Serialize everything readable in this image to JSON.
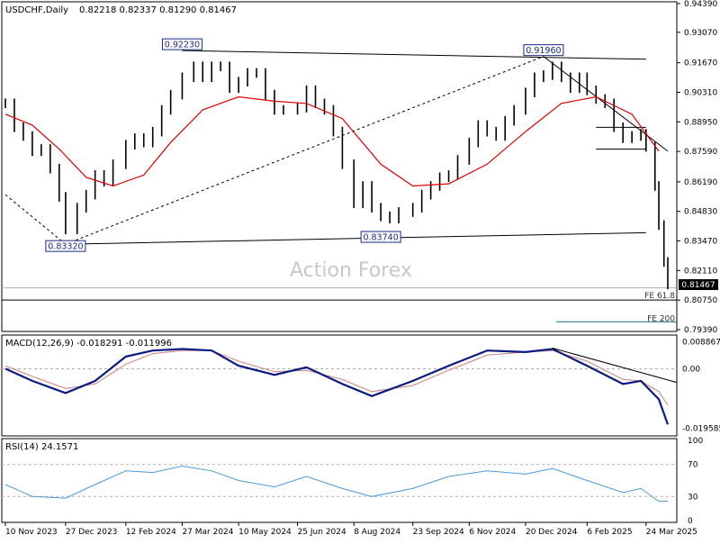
{
  "colors": {
    "price": "#000000",
    "ma": "#e00000",
    "macd": "#0b1a80",
    "signal": "#d08080",
    "rsi": "#4a9ad8",
    "label_border": "#1a2a8a",
    "watermark": "#c8c8c8",
    "grid": "#b0b0b0"
  },
  "header": {
    "symbol": "USDCHF,Daily",
    "ohlc": "0.82218 0.82337 0.81290 0.81467"
  },
  "watermark": "Action Forex",
  "current_price_label": "0.81467",
  "chart_data": [
    {
      "type": "ohlc",
      "title": "USDCHF,Daily",
      "ylim": [
        0.7939,
        0.9439
      ],
      "y_ticks": [
        "0.94390",
        "0.93070",
        "0.91670",
        "0.90310",
        "0.88950",
        "0.87590",
        "0.86190",
        "0.84830",
        "0.83470",
        "0.82110",
        "0.80750",
        "0.79390"
      ],
      "y_tick_values": [
        0.9439,
        0.9307,
        0.9167,
        0.9031,
        0.8895,
        0.8759,
        0.8619,
        0.8483,
        0.8347,
        0.8211,
        0.8075,
        0.7939
      ],
      "x_ticks": [
        "10 Nov 2023",
        "27 Dec 2023",
        "12 Feb 2024",
        "27 Mar 2024",
        "10 May 2024",
        "25 Jun 2024",
        "8 Aug 2024",
        "23 Sep 2024",
        "6 Nov 2024",
        "20 Dec 2024",
        "6 Feb 2025",
        "24 Mar 2025"
      ],
      "close_series": [
        {
          "date": "10 Nov 2023",
          "value": 0.898
        },
        {
          "date": "17 Nov 2023",
          "value": 0.887
        },
        {
          "date": "24 Nov 2023",
          "value": 0.883
        },
        {
          "date": "1 Dec 2023",
          "value": 0.876
        },
        {
          "date": "8 Dec 2023",
          "value": 0.877
        },
        {
          "date": "15 Dec 2023",
          "value": 0.868
        },
        {
          "date": "22 Dec 2023",
          "value": 0.855
        },
        {
          "date": "27 Dec 2023",
          "value": 0.84
        },
        {
          "date": "5 Jan 2024",
          "value": 0.85
        },
        {
          "date": "12 Jan 2024",
          "value": 0.856
        },
        {
          "date": "19 Jan 2024",
          "value": 0.865
        },
        {
          "date": "26 Jan 2024",
          "value": 0.862
        },
        {
          "date": "2 Feb 2024",
          "value": 0.87
        },
        {
          "date": "12 Feb 2024",
          "value": 0.879
        },
        {
          "date": "19 Feb 2024",
          "value": 0.882
        },
        {
          "date": "26 Feb 2024",
          "value": 0.88
        },
        {
          "date": "4 Mar 2024",
          "value": 0.885
        },
        {
          "date": "11 Mar 2024",
          "value": 0.895
        },
        {
          "date": "18 Mar 2024",
          "value": 0.902
        },
        {
          "date": "27 Mar 2024",
          "value": 0.91
        },
        {
          "date": "5 Apr 2024",
          "value": 0.915
        },
        {
          "date": "12 Apr 2024",
          "value": 0.91
        },
        {
          "date": "19 Apr 2024",
          "value": 0.915
        },
        {
          "date": "26 Apr 2024",
          "value": 0.915
        },
        {
          "date": "3 May 2024",
          "value": 0.905
        },
        {
          "date": "10 May 2024",
          "value": 0.908
        },
        {
          "date": "17 May 2024",
          "value": 0.912
        },
        {
          "date": "24 May 2024",
          "value": 0.912
        },
        {
          "date": "31 May 2024",
          "value": 0.902
        },
        {
          "date": "7 Jun 2024",
          "value": 0.895
        },
        {
          "date": "14 Jun 2024",
          "value": 0.895
        },
        {
          "date": "25 Jun 2024",
          "value": 0.896
        },
        {
          "date": "2 Jul 2024",
          "value": 0.904
        },
        {
          "date": "9 Jul 2024",
          "value": 0.898
        },
        {
          "date": "16 Jul 2024",
          "value": 0.895
        },
        {
          "date": "23 Jul 2024",
          "value": 0.885
        },
        {
          "date": "30 Jul 2024",
          "value": 0.87
        },
        {
          "date": "8 Aug 2024",
          "value": 0.852
        },
        {
          "date": "15 Aug 2024",
          "value": 0.86
        },
        {
          "date": "22 Aug 2024",
          "value": 0.85
        },
        {
          "date": "29 Aug 2024",
          "value": 0.846
        },
        {
          "date": "5 Sep 2024",
          "value": 0.845
        },
        {
          "date": "12 Sep 2024",
          "value": 0.848
        },
        {
          "date": "23 Sep 2024",
          "value": 0.85
        },
        {
          "date": "30 Sep 2024",
          "value": 0.856
        },
        {
          "date": "7 Oct 2024",
          "value": 0.86
        },
        {
          "date": "14 Oct 2024",
          "value": 0.864
        },
        {
          "date": "21 Oct 2024",
          "value": 0.865
        },
        {
          "date": "28 Oct 2024",
          "value": 0.872
        },
        {
          "date": "6 Nov 2024",
          "value": 0.88
        },
        {
          "date": "13 Nov 2024",
          "value": 0.888
        },
        {
          "date": "20 Nov 2024",
          "value": 0.885
        },
        {
          "date": "27 Nov 2024",
          "value": 0.883
        },
        {
          "date": "4 Dec 2024",
          "value": 0.89
        },
        {
          "date": "11 Dec 2024",
          "value": 0.895
        },
        {
          "date": "20 Dec 2024",
          "value": 0.903
        },
        {
          "date": "27 Dec 2024",
          "value": 0.91
        },
        {
          "date": "3 Jan 2025",
          "value": 0.911
        },
        {
          "date": "10 Jan 2025",
          "value": 0.915
        },
        {
          "date": "17 Jan 2025",
          "value": 0.91
        },
        {
          "date": "24 Jan 2025",
          "value": 0.905
        },
        {
          "date": "31 Jan 2025",
          "value": 0.91
        },
        {
          "date": "6 Feb 2025",
          "value": 0.904
        },
        {
          "date": "13 Feb 2025",
          "value": 0.9
        },
        {
          "date": "20 Feb 2025",
          "value": 0.898
        },
        {
          "date": "27 Feb 2025",
          "value": 0.887
        },
        {
          "date": "6 Mar 2025",
          "value": 0.882
        },
        {
          "date": "13 Mar 2025",
          "value": 0.883
        },
        {
          "date": "20 Mar 2025",
          "value": 0.884
        },
        {
          "date": "24 Mar 2025",
          "value": 0.878
        },
        {
          "date": "31 Mar 2025",
          "value": 0.86
        },
        {
          "date": "3 Apr 2025",
          "value": 0.842
        },
        {
          "date": "7 Apr 2025",
          "value": 0.825
        },
        {
          "date": "10 Apr 2025",
          "value": 0.8147
        }
      ],
      "ma_series": [
        {
          "date": "10 Nov 2023",
          "value": 0.893
        },
        {
          "date": "1 Dec 2023",
          "value": 0.888
        },
        {
          "date": "22 Dec 2023",
          "value": 0.877
        },
        {
          "date": "12 Jan 2024",
          "value": 0.864
        },
        {
          "date": "2 Feb 2024",
          "value": 0.86
        },
        {
          "date": "26 Feb 2024",
          "value": 0.865
        },
        {
          "date": "18 Mar 2024",
          "value": 0.88
        },
        {
          "date": "12 Apr 2024",
          "value": 0.895
        },
        {
          "date": "10 May 2024",
          "value": 0.901
        },
        {
          "date": "7 Jun 2024",
          "value": 0.899
        },
        {
          "date": "2 Jul 2024",
          "value": 0.898
        },
        {
          "date": "30 Jul 2024",
          "value": 0.891
        },
        {
          "date": "29 Aug 2024",
          "value": 0.87
        },
        {
          "date": "23 Sep 2024",
          "value": 0.86
        },
        {
          "date": "21 Oct 2024",
          "value": 0.861
        },
        {
          "date": "20 Nov 2024",
          "value": 0.87
        },
        {
          "date": "20 Dec 2024",
          "value": 0.885
        },
        {
          "date": "17 Jan 2025",
          "value": 0.898
        },
        {
          "date": "13 Feb 2025",
          "value": 0.901
        },
        {
          "date": "13 Mar 2025",
          "value": 0.893
        },
        {
          "date": "3 Apr 2025",
          "value": 0.876
        }
      ],
      "annotations": [
        {
          "text": "0.92230",
          "date": "27 Mar 2024",
          "value": 0.9223
        },
        {
          "text": "0.91960",
          "date": "3 Jan 2025",
          "value": 0.9196
        },
        {
          "text": "0.83320",
          "date": "27 Dec 2023",
          "value": 0.8332
        },
        {
          "text": "0.83740",
          "date": "29 Aug 2024",
          "value": 0.8374
        },
        {
          "text": "FE 61.8",
          "value": 0.812
        },
        {
          "text": "FE 200",
          "value": 0.801
        }
      ]
    },
    {
      "type": "line",
      "title": "MACD(12,26,9) -0.018291 -0.011996",
      "y_ticks": [
        "0.008867",
        "0.00",
        "-0.019585"
      ],
      "y_tick_values": [
        0.008867,
        0.0,
        -0.019585
      ],
      "ylim": [
        -0.0215,
        0.0105
      ],
      "macd_series": [
        {
          "date": "10 Nov 2023",
          "value": 0.0
        },
        {
          "date": "1 Dec 2023",
          "value": -0.004
        },
        {
          "date": "27 Dec 2023",
          "value": -0.008
        },
        {
          "date": "19 Jan 2024",
          "value": -0.004
        },
        {
          "date": "12 Feb 2024",
          "value": 0.004
        },
        {
          "date": "4 Mar 2024",
          "value": 0.006
        },
        {
          "date": "27 Mar 2024",
          "value": 0.0065
        },
        {
          "date": "19 Apr 2024",
          "value": 0.006
        },
        {
          "date": "10 May 2024",
          "value": 0.001
        },
        {
          "date": "7 Jun 2024",
          "value": -0.002
        },
        {
          "date": "2 Jul 2024",
          "value": 0.0005
        },
        {
          "date": "30 Jul 2024",
          "value": -0.005
        },
        {
          "date": "22 Aug 2024",
          "value": -0.009
        },
        {
          "date": "23 Sep 2024",
          "value": -0.004
        },
        {
          "date": "21 Oct 2024",
          "value": 0.001
        },
        {
          "date": "20 Nov 2024",
          "value": 0.006
        },
        {
          "date": "20 Dec 2024",
          "value": 0.0055
        },
        {
          "date": "10 Jan 2025",
          "value": 0.0065
        },
        {
          "date": "6 Feb 2025",
          "value": 0.001
        },
        {
          "date": "6 Mar 2025",
          "value": -0.005
        },
        {
          "date": "20 Mar 2025",
          "value": -0.004
        },
        {
          "date": "3 Apr 2025",
          "value": -0.01
        },
        {
          "date": "10 Apr 2025",
          "value": -0.0183
        }
      ],
      "signal_series": [
        {
          "date": "10 Nov 2023",
          "value": 0.001
        },
        {
          "date": "1 Dec 2023",
          "value": -0.0025
        },
        {
          "date": "27 Dec 2023",
          "value": -0.0065
        },
        {
          "date": "19 Jan 2024",
          "value": -0.005
        },
        {
          "date": "12 Feb 2024",
          "value": 0.0015
        },
        {
          "date": "4 Mar 2024",
          "value": 0.005
        },
        {
          "date": "27 Mar 2024",
          "value": 0.006
        },
        {
          "date": "19 Apr 2024",
          "value": 0.006
        },
        {
          "date": "10 May 2024",
          "value": 0.0025
        },
        {
          "date": "7 Jun 2024",
          "value": -0.001
        },
        {
          "date": "2 Jul 2024",
          "value": -0.0005
        },
        {
          "date": "30 Jul 2024",
          "value": -0.0035
        },
        {
          "date": "22 Aug 2024",
          "value": -0.0075
        },
        {
          "date": "23 Sep 2024",
          "value": -0.0055
        },
        {
          "date": "21 Oct 2024",
          "value": -0.0005
        },
        {
          "date": "20 Nov 2024",
          "value": 0.0045
        },
        {
          "date": "20 Dec 2024",
          "value": 0.0055
        },
        {
          "date": "10 Jan 2025",
          "value": 0.006
        },
        {
          "date": "6 Feb 2025",
          "value": 0.0025
        },
        {
          "date": "6 Mar 2025",
          "value": -0.0035
        },
        {
          "date": "20 Mar 2025",
          "value": -0.004
        },
        {
          "date": "3 Apr 2025",
          "value": -0.0075
        },
        {
          "date": "10 Apr 2025",
          "value": -0.012
        }
      ]
    },
    {
      "type": "line",
      "title": "RSI(14) 24.1571",
      "y_ticks": [
        "100",
        "70",
        "30",
        "0"
      ],
      "y_tick_values": [
        100,
        70,
        30,
        0
      ],
      "ylim": [
        0,
        100
      ],
      "rsi_series": [
        {
          "date": "10 Nov 2023",
          "value": 45
        },
        {
          "date": "1 Dec 2023",
          "value": 30
        },
        {
          "date": "27 Dec 2023",
          "value": 28
        },
        {
          "date": "19 Jan 2024",
          "value": 45
        },
        {
          "date": "12 Feb 2024",
          "value": 62
        },
        {
          "date": "4 Mar 2024",
          "value": 60
        },
        {
          "date": "27 Mar 2024",
          "value": 68
        },
        {
          "date": "19 Apr 2024",
          "value": 62
        },
        {
          "date": "10 May 2024",
          "value": 50
        },
        {
          "date": "7 Jun 2024",
          "value": 42
        },
        {
          "date": "2 Jul 2024",
          "value": 55
        },
        {
          "date": "30 Jul 2024",
          "value": 40
        },
        {
          "date": "22 Aug 2024",
          "value": 30
        },
        {
          "date": "23 Sep 2024",
          "value": 40
        },
        {
          "date": "21 Oct 2024",
          "value": 55
        },
        {
          "date": "20 Nov 2024",
          "value": 62
        },
        {
          "date": "20 Dec 2024",
          "value": 58
        },
        {
          "date": "10 Jan 2025",
          "value": 65
        },
        {
          "date": "6 Feb 2025",
          "value": 50
        },
        {
          "date": "6 Mar 2025",
          "value": 35
        },
        {
          "date": "20 Mar 2025",
          "value": 40
        },
        {
          "date": "3 Apr 2025",
          "value": 24
        },
        {
          "date": "10 Apr 2025",
          "value": 24.1571
        }
      ]
    }
  ]
}
